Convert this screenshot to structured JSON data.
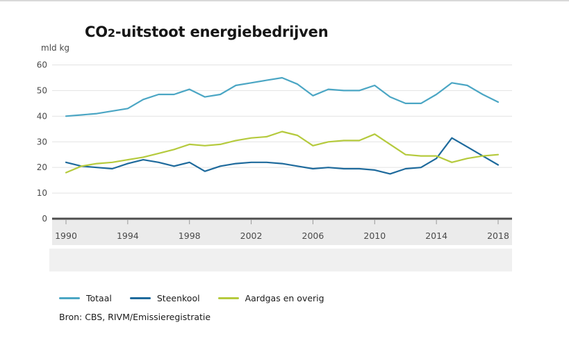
{
  "title": {
    "prefix": "CO",
    "sub": "2",
    "rest": "-uitstoot energiebedrijven"
  },
  "unit_label": "mld kg",
  "source": "Bron: CBS, RIVM/Emissieregistratie",
  "colors": {
    "totaal": "#4ba6c4",
    "steenkool": "#1e6a9c",
    "aardgas": "#b5ca3d",
    "grid": "#e3e3e3",
    "axis": "#4d4d4d",
    "tick": "#999999",
    "axis_text": "#4a4a4a",
    "band_upper": "#ebebeb",
    "band_lower": "#f0f0f0"
  },
  "chart_data": {
    "type": "line",
    "title": "CO2-uitstoot energiebedrijven",
    "ylabel": "mld kg",
    "xlabel": "",
    "ylim": [
      0,
      60
    ],
    "yticks": [
      0,
      10,
      20,
      30,
      40,
      50,
      60
    ],
    "xticks": [
      1990,
      1994,
      1998,
      2002,
      2006,
      2010,
      2014,
      2018
    ],
    "grid": true,
    "legend_position": "bottom",
    "x": [
      1990,
      1991,
      1992,
      1993,
      1994,
      1995,
      1996,
      1997,
      1998,
      1999,
      2000,
      2001,
      2002,
      2003,
      2004,
      2005,
      2006,
      2007,
      2008,
      2009,
      2010,
      2011,
      2012,
      2013,
      2014,
      2015,
      2016,
      2017,
      2018
    ],
    "series": [
      {
        "name": "Totaal",
        "color": "#4ba6c4",
        "values": [
          40,
          40.5,
          41,
          42,
          43,
          46.5,
          48.5,
          48.5,
          50.5,
          47.5,
          48.5,
          52,
          53,
          54,
          55,
          52.5,
          48,
          50.5,
          50,
          50,
          52,
          47.5,
          45,
          45,
          48.5,
          53,
          52,
          48.5,
          45.5
        ]
      },
      {
        "name": "Steenkool",
        "color": "#1e6a9c",
        "values": [
          22,
          20.5,
          20,
          19.5,
          21.5,
          23,
          22,
          20.5,
          22,
          18.5,
          20.5,
          21.5,
          22,
          22,
          21.5,
          20.5,
          19.5,
          20,
          19.5,
          19.5,
          19,
          17.5,
          19.5,
          20,
          23.5,
          31.5,
          28,
          24.5,
          21
        ]
      },
      {
        "name": "Aardgas en overig",
        "color": "#b5ca3d",
        "values": [
          18,
          20.5,
          21.5,
          22,
          23,
          24,
          25.5,
          27,
          29,
          28.5,
          29,
          30.5,
          31.5,
          32,
          34,
          32.5,
          28.5,
          30,
          30.5,
          30.5,
          33,
          29,
          25,
          24.5,
          24.5,
          22,
          23.5,
          24.5,
          25
        ]
      }
    ]
  }
}
